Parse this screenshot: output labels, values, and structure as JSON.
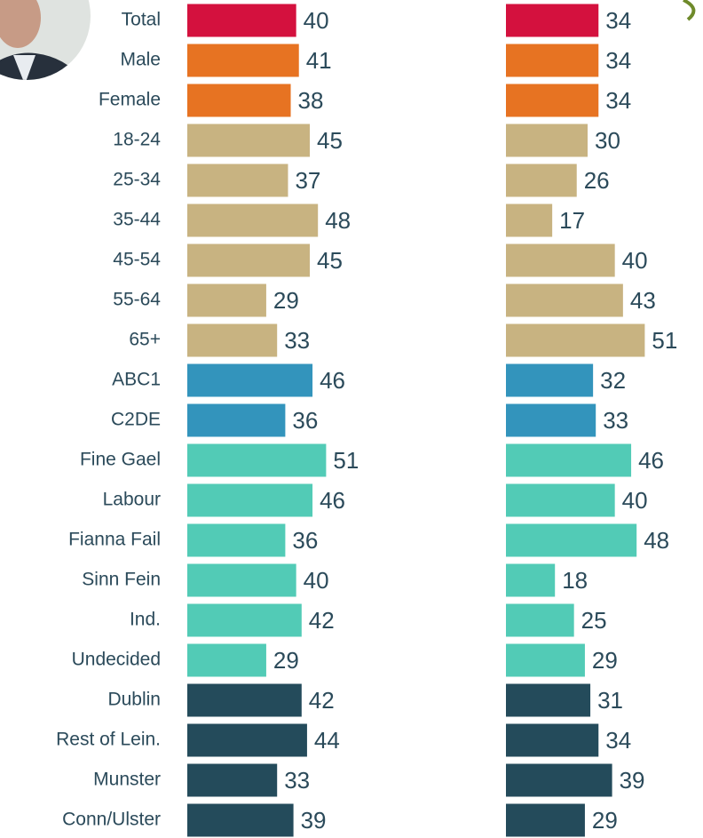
{
  "chart_data": {
    "type": "bar",
    "categories": [
      "Total",
      "Male",
      "Female",
      "18-24",
      "25-34",
      "35-44",
      "45-54",
      "55-64",
      "65+",
      "ABC1",
      "C2DE",
      "Fine Gael",
      "Labour",
      "Fianna Fail",
      "Sinn Fein",
      "Ind.",
      "Undecided",
      "Dublin",
      "Rest of Lein.",
      "Munster",
      "Conn/Ulster"
    ],
    "category_colors": [
      "#d4113e",
      "#e77322",
      "#e77322",
      "#c8b381",
      "#c8b381",
      "#c8b381",
      "#c8b381",
      "#c8b381",
      "#c8b381",
      "#3394bc",
      "#3394bc",
      "#52cbb6",
      "#52cbb6",
      "#52cbb6",
      "#52cbb6",
      "#52cbb6",
      "#52cbb6",
      "#244b5b",
      "#244b5b",
      "#244b5b",
      "#244b5b"
    ],
    "series": [
      {
        "values": [
          40,
          41,
          38,
          45,
          37,
          48,
          45,
          29,
          33,
          46,
          36,
          51,
          46,
          36,
          40,
          42,
          29,
          42,
          44,
          33,
          39
        ]
      },
      {
        "values": [
          34,
          34,
          34,
          30,
          26,
          17,
          40,
          43,
          51,
          32,
          33,
          46,
          40,
          48,
          18,
          25,
          29,
          31,
          34,
          39,
          29
        ]
      }
    ],
    "xlim": [
      0,
      60
    ]
  }
}
